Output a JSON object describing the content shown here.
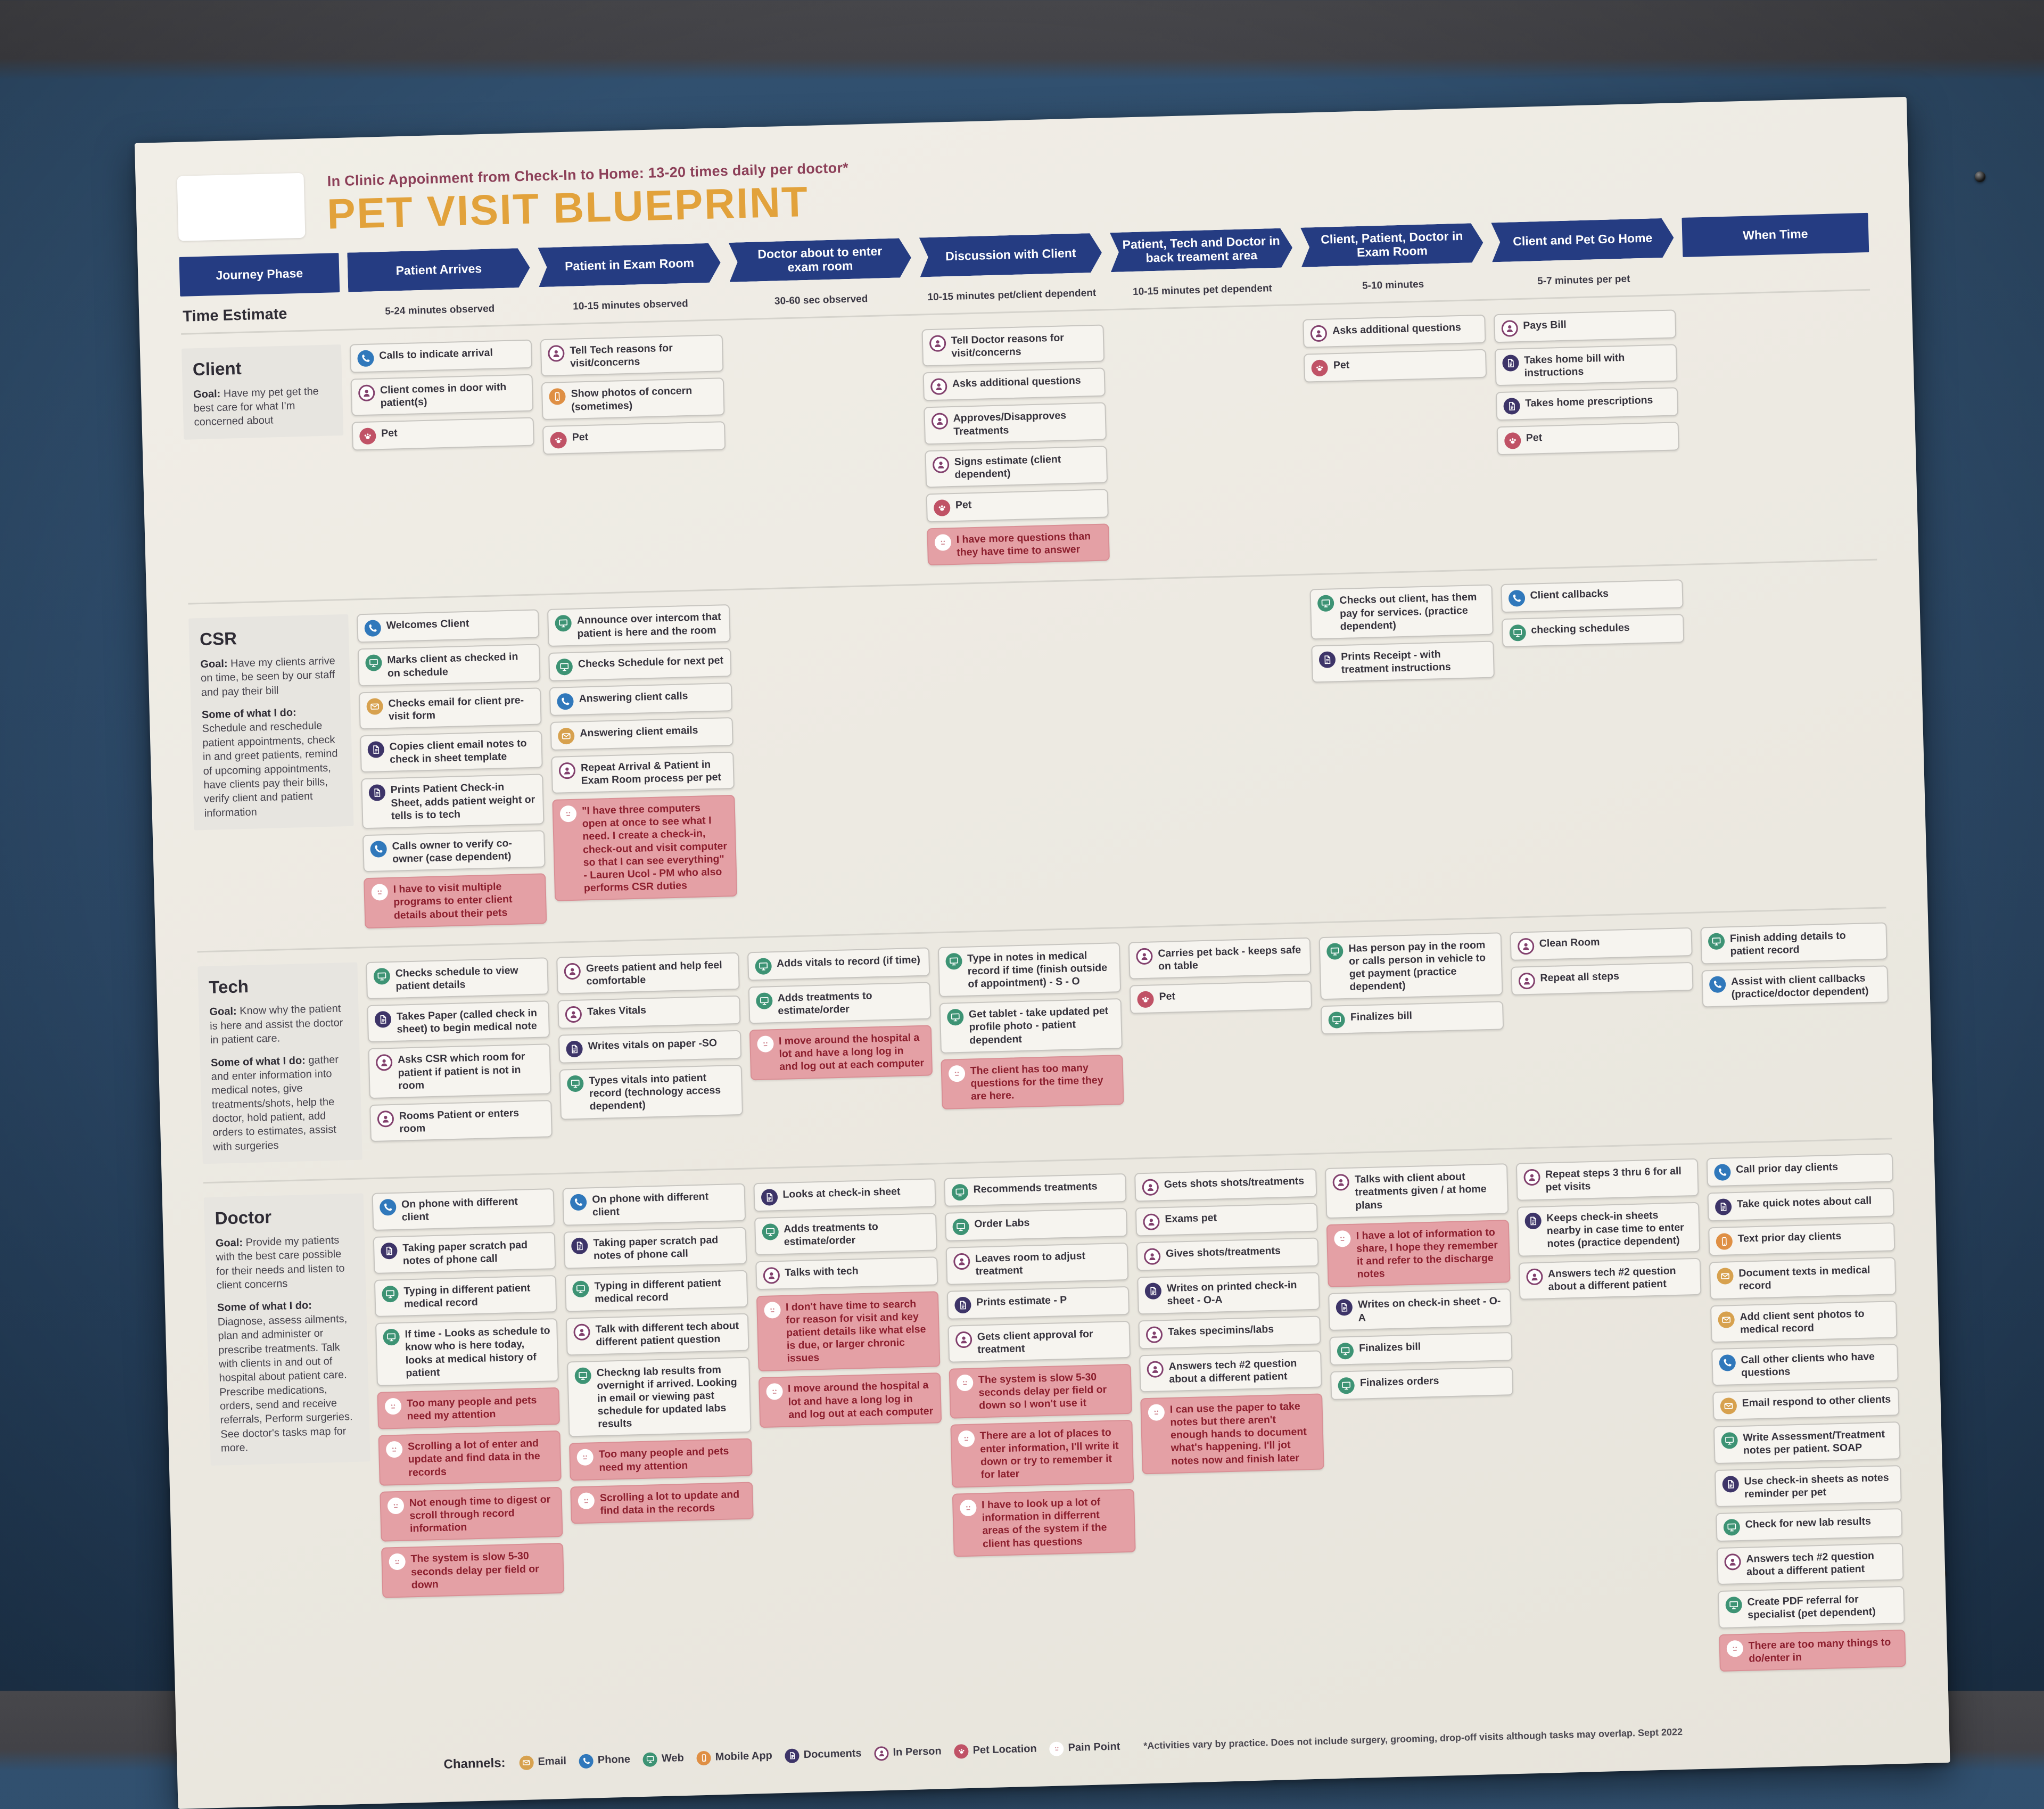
{
  "poster": {
    "subtitle": "In Clinic Appoinment from Check-In to Home: 13-20 times daily per doctor*",
    "title": "PET VISIT BLUEPRINT",
    "journey_phase_label": "Journey Phase",
    "time_estimate_label": "Time Estimate",
    "when_time_label": "When Time",
    "phases": [
      "Patient Arrives",
      "Patient in Exam Room",
      "Doctor about to enter exam room",
      "Discussion with Client",
      "Patient, Tech and Doctor in back treament area",
      "Client, Patient, Doctor in Exam Room",
      "Client and Pet Go Home"
    ],
    "time_estimates": [
      "5-24 minutes observed",
      "10-15 minutes observed",
      "30-60 sec observed",
      "10-15 minutes pet/client dependent",
      "10-15 minutes pet dependent",
      "5-10 minutes",
      "5-7 minutes per pet",
      ""
    ],
    "colors": {
      "navy": "#253c82",
      "title_gold": "#e2a23b",
      "subtitle_maroon": "#8c3f58",
      "pain_card_bg": "#e4a0a5",
      "pain_text": "#8c1f2e",
      "channels": {
        "email": "#d7a14e",
        "phone": "#3078bb",
        "web": "#3d9374",
        "mobile_app": "#df8f44",
        "documents": "#3d3468",
        "in_person": "#82406d",
        "pet_location": "#c05266",
        "pain_point": "#cf8790"
      }
    },
    "roles": [
      {
        "name": "Client",
        "goal_label": "Goal:",
        "goal": "Have my pet get the best care for what I'm concerned about",
        "do_label": "",
        "do": "",
        "columns": [
          [
            {
              "channel": "phone",
              "text": "Calls to indicate arrival"
            },
            {
              "channel": "in_person",
              "text": "Client comes in door with patient(s)"
            },
            {
              "channel": "pet_location",
              "text": "Pet"
            }
          ],
          [
            {
              "channel": "in_person",
              "text": "Tell Tech reasons for visit/concerns"
            },
            {
              "channel": "mobile_app",
              "text": "Show photos of concern (sometimes)"
            },
            {
              "channel": "pet_location",
              "text": "Pet"
            }
          ],
          [],
          [
            {
              "channel": "in_person",
              "text": "Tell Doctor reasons for visit/concerns"
            },
            {
              "channel": "in_person",
              "text": "Asks additional questions"
            },
            {
              "channel": "in_person",
              "text": "Approves/Disapproves Treatments"
            },
            {
              "channel": "in_person",
              "text": "Signs estimate (client dependent)"
            },
            {
              "channel": "pet_location",
              "text": "Pet"
            },
            {
              "channel": "pain_point",
              "text": "I have more questions than they have time to answer"
            }
          ],
          [],
          [
            {
              "channel": "in_person",
              "text": "Asks additional questions"
            },
            {
              "channel": "pet_location",
              "text": "Pet"
            }
          ],
          [
            {
              "channel": "in_person",
              "text": "Pays Bill"
            },
            {
              "channel": "documents",
              "text": "Takes home bill with instructions"
            },
            {
              "channel": "documents",
              "text": "Takes home prescriptions"
            },
            {
              "channel": "pet_location",
              "text": "Pet"
            }
          ],
          []
        ]
      },
      {
        "name": "CSR",
        "goal_label": "Goal:",
        "goal": "Have my clients arrive on time, be seen by our staff and pay their bill",
        "do_label": "Some of what I do:",
        "do": "Schedule and reschedule patient appointments, check in and greet patients, remind of upcoming appointments, have clients pay their bills, verify client and patient information",
        "columns": [
          [
            {
              "channel": "phone",
              "text": "Welcomes Client"
            },
            {
              "channel": "web",
              "text": "Marks client as checked in on schedule"
            },
            {
              "channel": "email",
              "text": "Checks email for client pre-visit form"
            },
            {
              "channel": "documents",
              "text": "Copies client email notes to check in sheet template"
            },
            {
              "channel": "documents",
              "text": "Prints Patient Check-in Sheet, adds patient weight or tells is to tech"
            },
            {
              "channel": "phone",
              "text": "Calls owner to verify co-owner (case dependent)"
            },
            {
              "channel": "pain_point",
              "text": "I have to visit multiple programs to enter client details about their pets"
            }
          ],
          [
            {
              "channel": "web",
              "text": "Announce over intercom that patient is here and the room"
            },
            {
              "channel": "web",
              "text": "Checks Schedule for next pet"
            },
            {
              "channel": "phone",
              "text": "Answering client calls"
            },
            {
              "channel": "email",
              "text": "Answering client emails"
            },
            {
              "channel": "in_person",
              "text": "Repeat Arrival & Patient in Exam Room process per pet"
            },
            {
              "channel": "pain_point",
              "text": "\"I have three computers open at once to see what I need. I create a check-in, check-out and visit computer so that I can see everything\" - Lauren Ucol - PM who also performs CSR duties"
            }
          ],
          [],
          [],
          [],
          [
            {
              "channel": "web",
              "text": "Checks out client, has them pay for services. (practice dependent)"
            },
            {
              "channel": "documents",
              "text": "Prints Receipt - with treatment instructions"
            }
          ],
          [
            {
              "channel": "phone",
              "text": "Client callbacks"
            },
            {
              "channel": "web",
              "text": "checking schedules"
            }
          ],
          []
        ]
      },
      {
        "name": "Tech",
        "goal_label": "Goal:",
        "goal": "Know why the patient is here and assist the doctor in patient care.",
        "do_label": "Some of what I do:",
        "do": "gather and enter information into medical notes, give treatments/shots, help the doctor, hold patient, add orders to estimates, assist with surgeries",
        "columns": [
          [
            {
              "channel": "web",
              "text": "Checks schedule to view patient details"
            },
            {
              "channel": "documents",
              "text": "Takes Paper (called check in sheet) to begin medical note"
            },
            {
              "channel": "in_person",
              "text": "Asks CSR which room for patient if patient is not in room"
            },
            {
              "channel": "in_person",
              "text": "Rooms Patient or enters room"
            }
          ],
          [
            {
              "channel": "in_person",
              "text": "Greets patient and help feel comfortable"
            },
            {
              "channel": "in_person",
              "text": "Takes Vitals"
            },
            {
              "channel": "documents",
              "text": "Writes vitals on paper -SO"
            },
            {
              "channel": "web",
              "text": "Types vitals into patient record (technology access dependent)"
            }
          ],
          [
            {
              "channel": "web",
              "text": "Adds vitals to record (if time)"
            },
            {
              "channel": "web",
              "text": "Adds treatments to estimate/order"
            },
            {
              "channel": "pain_point",
              "text": "I move around the hospital a lot and have a long log in and log out at each computer"
            }
          ],
          [
            {
              "channel": "web",
              "text": "Type in notes in medical record if time (finish outside of appointment) - S - O"
            },
            {
              "channel": "web",
              "text": "Get tablet - take updated pet profile photo - patient dependent"
            },
            {
              "channel": "pain_point",
              "text": "The client has too many questions for the time they are here."
            }
          ],
          [
            {
              "channel": "in_person",
              "text": "Carries pet back - keeps safe on table"
            },
            {
              "channel": "pet_location",
              "text": "Pet"
            }
          ],
          [
            {
              "channel": "web",
              "text": "Has person pay in the room or calls person in vehicle to get payment (practice dependent)"
            },
            {
              "channel": "web",
              "text": "Finalizes bill"
            }
          ],
          [
            {
              "channel": "in_person",
              "text": "Clean Room"
            },
            {
              "channel": "in_person",
              "text": "Repeat all steps"
            }
          ],
          [
            {
              "channel": "web",
              "text": "Finish adding details to patient record"
            },
            {
              "channel": "phone",
              "text": "Assist with client callbacks (practice/doctor dependent)"
            }
          ]
        ]
      },
      {
        "name": "Doctor",
        "goal_label": "Goal:",
        "goal": "Provide my patients with the best care possible for their needs and listen to client concerns",
        "do_label": "Some of what I do:",
        "do": "Diagnose, assess ailments, plan and administer or prescribe treatments. Talk with clients in and out of hospital about patient care. Prescribe medications, orders, send and receive referrals,  Perform surgeries. See doctor's tasks map for more.",
        "columns": [
          [
            {
              "channel": "phone",
              "text": "On phone with different client"
            },
            {
              "channel": "documents",
              "text": "Taking paper scratch pad notes of phone call"
            },
            {
              "channel": "web",
              "text": "Typing in different patient medical record"
            },
            {
              "channel": "web",
              "text": "If time - Looks as schedule to know who is here today, looks at medical history of patient"
            },
            {
              "channel": "pain_point",
              "text": "Too many people and pets need my attention"
            },
            {
              "channel": "pain_point",
              "text": "Scrolling a lot of enter and update and find data in the records"
            },
            {
              "channel": "pain_point",
              "text": "Not enough time to digest or scroll through record information"
            },
            {
              "channel": "pain_point",
              "text": "The system is slow 5-30 seconds delay per field or down"
            }
          ],
          [
            {
              "channel": "phone",
              "text": "On phone with different client"
            },
            {
              "channel": "documents",
              "text": "Taking paper scratch pad notes of phone call"
            },
            {
              "channel": "web",
              "text": "Typing in different patient medical record"
            },
            {
              "channel": "in_person",
              "text": "Talk with different tech about different patient question"
            },
            {
              "channel": "web",
              "text": "Checkng lab results from overnight if arrived. Looking in email or viewing past schedule for updated labs results"
            },
            {
              "channel": "pain_point",
              "text": "Too many people and pets need my attention"
            },
            {
              "channel": "pain_point",
              "text": "Scrolling a lot to update and find data in the records"
            }
          ],
          [
            {
              "channel": "documents",
              "text": "Looks at check-in sheet"
            },
            {
              "channel": "web",
              "text": "Adds treatments to estimate/order"
            },
            {
              "channel": "in_person",
              "text": "Talks with tech"
            },
            {
              "channel": "pain_point",
              "text": "I don't have time to search for reason for visit and key patient details like what else is due, or larger chronic issues"
            },
            {
              "channel": "pain_point",
              "text": "I move around the hospital a lot and have a long log in and log out at each computer"
            }
          ],
          [
            {
              "channel": "web",
              "text": "Recommends treatments"
            },
            {
              "channel": "web",
              "text": "Order Labs"
            },
            {
              "channel": "in_person",
              "text": "Leaves room to adjust treatment"
            },
            {
              "channel": "documents",
              "text": "Prints estimate  - P"
            },
            {
              "channel": "in_person",
              "text": "Gets client approval for treatment"
            },
            {
              "channel": "pain_point",
              "text": "The system is slow 5-30 seconds delay per field or down so I won't use it"
            },
            {
              "channel": "pain_point",
              "text": "There are a lot of places to enter information, I'll write it down or try to remember it for later"
            },
            {
              "channel": "pain_point",
              "text": "I have to look up a lot of information in differrent areas of the system if the client has questions"
            }
          ],
          [
            {
              "channel": "in_person",
              "text": "Gets shots shots/treatments"
            },
            {
              "channel": "in_person",
              "text": "Exams pet"
            },
            {
              "channel": "in_person",
              "text": "Gives shots/treatments"
            },
            {
              "channel": "documents",
              "text": "Writes on printed check-in sheet - O-A"
            },
            {
              "channel": "in_person",
              "text": "Takes specimins/labs"
            },
            {
              "channel": "in_person",
              "text": "Answers tech #2 question about a different patient"
            },
            {
              "channel": "pain_point",
              "text": "I can use the paper to take notes but there aren't enough hands to document what's happening. I'll jot notes now and finish later"
            }
          ],
          [
            {
              "channel": "in_person",
              "text": "Talks with client about treatments given / at home plans"
            },
            {
              "channel": "pain_point",
              "text": "I have a lot of information to share, I hope they remember it and refer to the discharge notes"
            },
            {
              "channel": "documents",
              "text": "Writes on check-in sheet - O-A"
            },
            {
              "channel": "web",
              "text": "Finalizes bill"
            },
            {
              "channel": "web",
              "text": "Finalizes orders"
            }
          ],
          [
            {
              "channel": "in_person",
              "text": "Repeat steps 3 thru 6 for all pet visits"
            },
            {
              "channel": "documents",
              "text": "Keeps check-in sheets nearby in case time to enter notes (practice dependent)"
            },
            {
              "channel": "in_person",
              "text": "Answers tech #2 question about a different patient"
            }
          ],
          [
            {
              "channel": "phone",
              "text": "Call prior day clients"
            },
            {
              "channel": "documents",
              "text": "Take quick notes about call"
            },
            {
              "channel": "mobile_app",
              "text": "Text prior day clients"
            },
            {
              "channel": "email",
              "text": "Document texts in medical record"
            },
            {
              "channel": "email",
              "text": "Add client sent photos to medical record"
            },
            {
              "channel": "phone",
              "text": "Call other clients who have questions"
            },
            {
              "channel": "email",
              "text": "Email respond to other clients"
            },
            {
              "channel": "web",
              "text": "Write Assessment/Treatment notes per patient.  SOAP"
            },
            {
              "channel": "documents",
              "text": "Use check-in sheets as notes reminder per pet"
            },
            {
              "channel": "web",
              "text": "Check for new lab results"
            },
            {
              "channel": "in_person",
              "text": "Answers tech #2 question about a different patient"
            },
            {
              "channel": "web",
              "text": "Create PDF referral for specialist (pet dependent)"
            },
            {
              "channel": "pain_point",
              "text": "There are too many things to do/enter in"
            }
          ]
        ]
      }
    ],
    "legend": {
      "label": "Channels:",
      "items": [
        {
          "channel": "email",
          "label": "Email"
        },
        {
          "channel": "phone",
          "label": "Phone"
        },
        {
          "channel": "web",
          "label": "Web"
        },
        {
          "channel": "mobile_app",
          "label": "Mobile App"
        },
        {
          "channel": "documents",
          "label": "Documents"
        },
        {
          "channel": "in_person",
          "label": "In Person"
        },
        {
          "channel": "pet_location",
          "label": "Pet Location"
        },
        {
          "channel": "pain_point",
          "label": "Pain Point"
        }
      ],
      "footnote": "*Activities vary by practice. Does not include surgery, grooming, drop-off visits although tasks may overlap. Sept 2022"
    }
  }
}
